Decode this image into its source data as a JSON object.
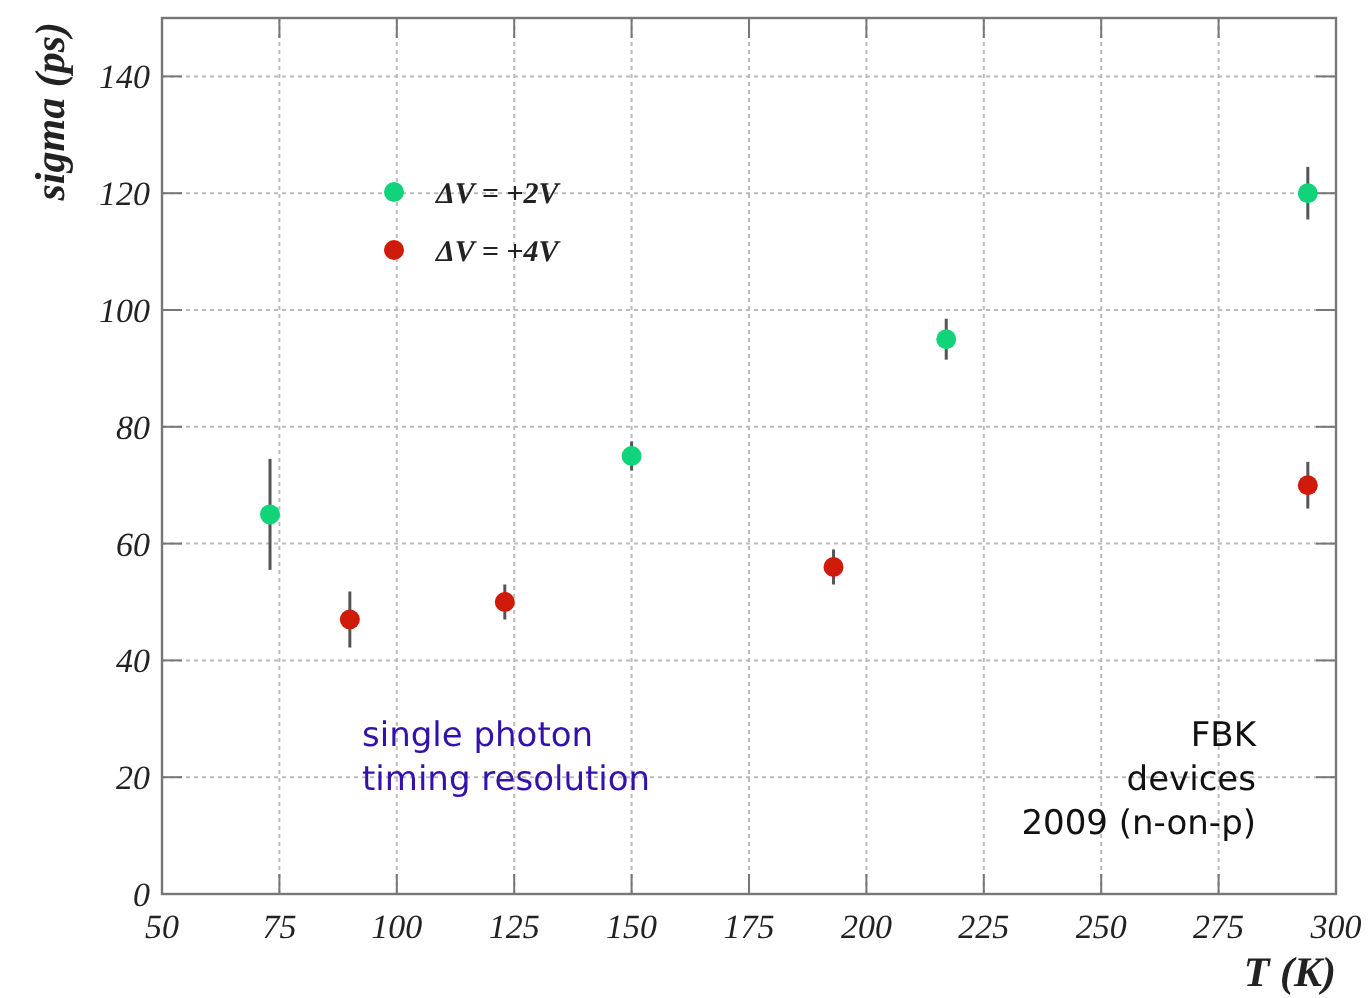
{
  "chart_data": {
    "type": "scatter",
    "xlabel": "T (K)",
    "ylabel": "sigma (ps)",
    "xlim": [
      50,
      300
    ],
    "xticks": [
      50,
      75,
      100,
      125,
      150,
      175,
      200,
      225,
      250,
      275,
      300
    ],
    "ylim": [
      0,
      150
    ],
    "yticks": [
      0,
      20,
      40,
      60,
      80,
      100,
      120,
      140
    ],
    "grid": true,
    "legend": "top left",
    "marker": "circle",
    "series": [
      {
        "name": "ΔV = +2V",
        "color": "#11d47a",
        "x": [
          73,
          150,
          217,
          294
        ],
        "values": [
          65,
          75,
          95,
          120
        ],
        "errors": [
          9.5,
          2.5,
          3.5,
          4.5
        ]
      },
      {
        "name": "ΔV = +4V",
        "color": "#d01a0a",
        "x": [
          90,
          123,
          193,
          294
        ],
        "values": [
          47,
          50,
          56,
          70
        ],
        "errors": [
          4.8,
          3,
          3,
          4
        ]
      }
    ],
    "annotations": [
      "single photon\ntiming resolution",
      "FBK\ndevices\n2009 (n-on-p)"
    ]
  }
}
